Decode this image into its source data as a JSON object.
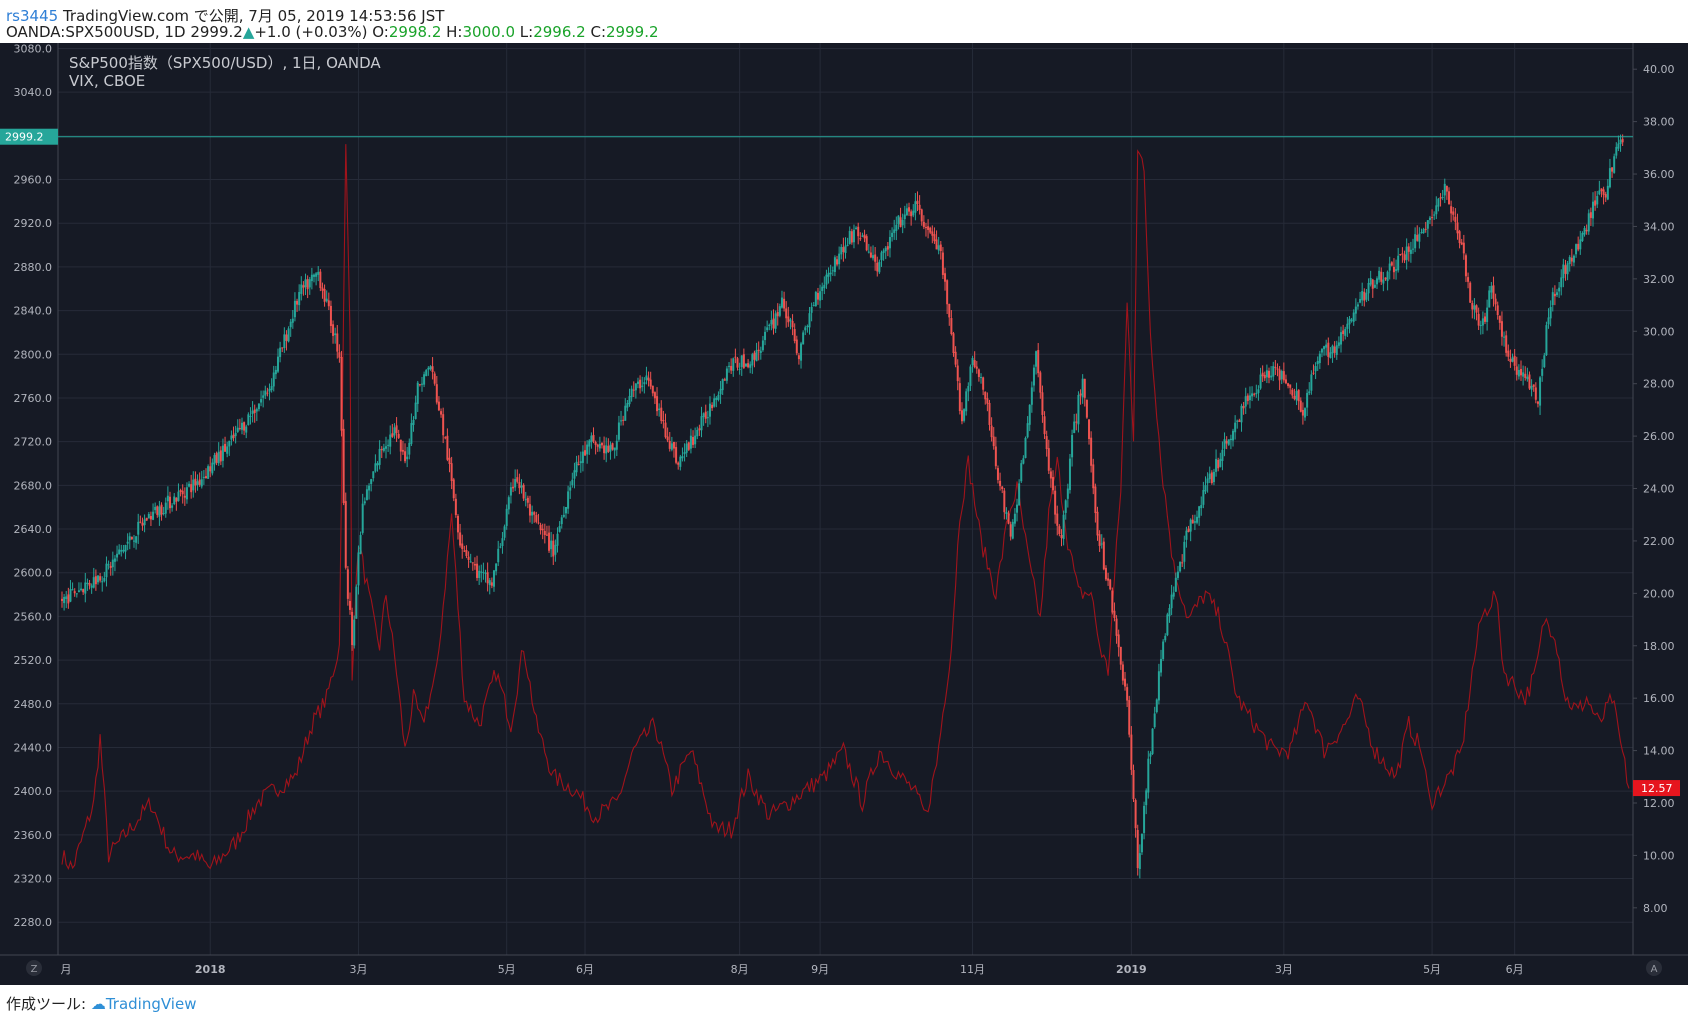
{
  "header": {
    "author": "rs3445",
    "published": "TradingView.com で公開, 7月 05, 2019 14:53:56 JST",
    "symbol": "OANDA:SPX500USD, 1D",
    "last": "2999.2",
    "change_arrow": "▲",
    "change": "+1.0 (+0.03%)",
    "o_label": "O:",
    "o_val": "2998.2",
    "h_label": "H:",
    "h_val": "3000.0",
    "l_label": "L:",
    "l_val": "2996.2",
    "c_label": "C:",
    "c_val": "2999.2"
  },
  "footer": {
    "label": "作成ツール:",
    "brand": "TradingView",
    "brand_icon": "cloud-logo-icon"
  },
  "legend": {
    "line1": "S&P500指数（SPX500/USD）, 1日, OANDA",
    "line2": "VIX, CBOE"
  },
  "colors": {
    "background": "#161a25",
    "grid": "#262b38",
    "up": "#26a69a",
    "down": "#ef5350",
    "vix": "#a0131b",
    "price_tag": "#26a69a",
    "vix_tag": "#e6151e",
    "axis_text": "#b2b5be"
  },
  "buttons": {
    "left": "Z",
    "right": "A"
  },
  "price_tag": "2999.2",
  "vix_tag": "12.57",
  "chart_data": {
    "type": "candlestick",
    "series": [
      {
        "name": "S&P500指数（SPX500/USD）, 1日, OANDA",
        "axis": "left",
        "anchors": [
          [
            0,
            2575
          ],
          [
            20,
            2600
          ],
          [
            40,
            2650
          ],
          [
            65,
            2685
          ],
          [
            80,
            2720
          ],
          [
            98,
            2770
          ],
          [
            112,
            2855
          ],
          [
            121,
            2875
          ],
          [
            131,
            2800
          ],
          [
            134,
            2600
          ],
          [
            137,
            2540
          ],
          [
            142,
            2660
          ],
          [
            151,
            2715
          ],
          [
            157,
            2730
          ],
          [
            162,
            2700
          ],
          [
            168,
            2770
          ],
          [
            174,
            2790
          ],
          [
            181,
            2720
          ],
          [
            188,
            2630
          ],
          [
            196,
            2600
          ],
          [
            203,
            2590
          ],
          [
            214,
            2690
          ],
          [
            222,
            2650
          ],
          [
            232,
            2620
          ],
          [
            241,
            2690
          ],
          [
            250,
            2720
          ],
          [
            260,
            2710
          ],
          [
            267,
            2760
          ],
          [
            276,
            2780
          ],
          [
            283,
            2740
          ],
          [
            291,
            2700
          ],
          [
            303,
            2740
          ],
          [
            315,
            2790
          ],
          [
            326,
            2795
          ],
          [
            336,
            2830
          ],
          [
            340,
            2850
          ],
          [
            348,
            2800
          ],
          [
            355,
            2850
          ],
          [
            365,
            2885
          ],
          [
            375,
            2915
          ],
          [
            385,
            2880
          ],
          [
            395,
            2920
          ],
          [
            403,
            2935
          ],
          [
            410,
            2910
          ],
          [
            415,
            2890
          ],
          [
            421,
            2800
          ],
          [
            425,
            2740
          ],
          [
            430,
            2800
          ],
          [
            436,
            2760
          ],
          [
            443,
            2680
          ],
          [
            448,
            2630
          ],
          [
            455,
            2720
          ],
          [
            460,
            2800
          ],
          [
            467,
            2680
          ],
          [
            472,
            2630
          ],
          [
            477,
            2720
          ],
          [
            482,
            2780
          ],
          [
            489,
            2640
          ],
          [
            497,
            2560
          ],
          [
            503,
            2480
          ],
          [
            508,
            2330
          ],
          [
            515,
            2460
          ],
          [
            522,
            2560
          ],
          [
            532,
            2640
          ],
          [
            541,
            2680
          ],
          [
            550,
            2720
          ],
          [
            560,
            2760
          ],
          [
            569,
            2785
          ],
          [
            578,
            2780
          ],
          [
            586,
            2750
          ],
          [
            594,
            2800
          ],
          [
            603,
            2810
          ],
          [
            612,
            2845
          ],
          [
            620,
            2870
          ],
          [
            629,
            2880
          ],
          [
            638,
            2900
          ],
          [
            646,
            2925
          ],
          [
            653,
            2950
          ],
          [
            661,
            2900
          ],
          [
            665,
            2850
          ],
          [
            670,
            2820
          ],
          [
            675,
            2860
          ],
          [
            681,
            2810
          ],
          [
            686,
            2790
          ],
          [
            690,
            2780
          ],
          [
            697,
            2760
          ],
          [
            703,
            2850
          ],
          [
            710,
            2880
          ],
          [
            717,
            2900
          ],
          [
            724,
            2940
          ],
          [
            729,
            2950
          ],
          [
            733,
            2980
          ],
          [
            737,
            3000
          ]
        ]
      },
      {
        "name": "VIX, CBOE",
        "axis": "right",
        "anchors": [
          [
            0,
            10
          ],
          [
            5,
            9.5
          ],
          [
            15,
            12
          ],
          [
            18,
            14.5
          ],
          [
            22,
            10
          ],
          [
            32,
            11
          ],
          [
            42,
            12
          ],
          [
            52,
            10
          ],
          [
            63,
            10
          ],
          [
            70,
            9.5
          ],
          [
            82,
            10.5
          ],
          [
            92,
            12
          ],
          [
            100,
            12.5
          ],
          [
            110,
            13
          ],
          [
            118,
            15
          ],
          [
            125,
            16
          ],
          [
            131,
            18
          ],
          [
            134,
            37
          ],
          [
            136,
            30
          ],
          [
            137,
            17
          ],
          [
            140,
            22
          ],
          [
            147,
            19
          ],
          [
            150,
            18
          ],
          [
            153,
            20
          ],
          [
            158,
            17
          ],
          [
            162,
            14
          ],
          [
            166,
            16
          ],
          [
            170,
            15
          ],
          [
            177,
            17
          ],
          [
            184,
            23
          ],
          [
            190,
            16
          ],
          [
            197,
            15
          ],
          [
            205,
            17
          ],
          [
            212,
            15
          ],
          [
            218,
            18
          ],
          [
            224,
            15
          ],
          [
            232,
            13
          ],
          [
            242,
            12.5
          ],
          [
            252,
            11.5
          ],
          [
            262,
            12
          ],
          [
            270,
            14
          ],
          [
            280,
            15
          ],
          [
            288,
            12.5
          ],
          [
            297,
            14
          ],
          [
            308,
            11
          ],
          [
            316,
            11
          ],
          [
            324,
            13
          ],
          [
            334,
            11.5
          ],
          [
            343,
            12
          ],
          [
            351,
            12.5
          ],
          [
            360,
            13
          ],
          [
            369,
            14
          ],
          [
            378,
            12
          ],
          [
            386,
            14
          ],
          [
            396,
            13
          ],
          [
            402,
            12.5
          ],
          [
            408,
            11.5
          ],
          [
            413,
            13.5
          ],
          [
            420,
            18
          ],
          [
            424,
            23
          ],
          [
            428,
            25
          ],
          [
            434,
            22
          ],
          [
            441,
            20
          ],
          [
            447,
            23
          ],
          [
            451,
            24
          ],
          [
            457,
            21
          ],
          [
            462,
            19
          ],
          [
            466,
            23
          ],
          [
            470,
            25
          ],
          [
            475,
            22
          ],
          [
            480,
            20
          ],
          [
            486,
            20
          ],
          [
            490,
            18
          ],
          [
            494,
            17
          ],
          [
            500,
            24
          ],
          [
            503,
            31
          ],
          [
            506,
            26
          ],
          [
            508,
            37
          ],
          [
            511,
            36
          ],
          [
            514,
            30
          ],
          [
            519,
            25
          ],
          [
            525,
            21
          ],
          [
            532,
            19
          ],
          [
            540,
            20
          ],
          [
            547,
            19
          ],
          [
            555,
            16
          ],
          [
            563,
            15
          ],
          [
            572,
            14
          ],
          [
            580,
            14
          ],
          [
            588,
            16
          ],
          [
            596,
            14
          ],
          [
            606,
            15
          ],
          [
            612,
            16
          ],
          [
            620,
            14
          ],
          [
            630,
            13
          ],
          [
            636,
            15
          ],
          [
            642,
            14
          ],
          [
            646,
            12
          ],
          [
            655,
            13
          ],
          [
            661,
            14
          ],
          [
            666,
            17
          ],
          [
            670,
            19
          ],
          [
            677,
            20
          ],
          [
            681,
            17
          ],
          [
            686,
            16.5
          ],
          [
            691,
            16
          ],
          [
            696,
            17
          ],
          [
            700,
            19
          ],
          [
            705,
            18.5
          ],
          [
            710,
            16
          ],
          [
            716,
            15.5
          ],
          [
            720,
            16
          ],
          [
            726,
            15
          ],
          [
            732,
            16
          ],
          [
            740,
            12.57
          ]
        ]
      }
    ],
    "left_axis": {
      "ylim": [
        2250,
        3085
      ],
      "ticks": [
        "3080.0",
        "3040.0",
        "3000.0",
        "2960.0",
        "2920.0",
        "2880.0",
        "2840.0",
        "2800.0",
        "2760.0",
        "2720.0",
        "2680.0",
        "2640.0",
        "2600.0",
        "2560.0",
        "2520.0",
        "2480.0",
        "2440.0",
        "2400.0",
        "2360.0",
        "2320.0",
        "2280.0"
      ]
    },
    "right_axis": {
      "ylim": [
        6.2,
        41.0
      ],
      "ticks": [
        "40.00",
        "38.00",
        "36.00",
        "34.00",
        "32.00",
        "30.00",
        "28.00",
        "26.00",
        "24.00",
        "22.00",
        "20.00",
        "18.00",
        "16.00",
        "14.00",
        "12.00",
        "10.00",
        "8.00"
      ]
    },
    "x_axis": {
      "ticks": [
        {
          "label": "月",
          "day": 0
        },
        {
          "label": "2018",
          "day": 70,
          "bold": true
        },
        {
          "label": "3月",
          "day": 140
        },
        {
          "label": "5月",
          "day": 210
        },
        {
          "label": "6月",
          "day": 247
        },
        {
          "label": "8月",
          "day": 320
        },
        {
          "label": "9月",
          "day": 358
        },
        {
          "label": "11月",
          "day": 430
        },
        {
          "label": "2019",
          "day": 505,
          "bold": true
        },
        {
          "label": "3月",
          "day": 577
        },
        {
          "label": "5月",
          "day": 647
        },
        {
          "label": "6月",
          "day": 686
        }
      ]
    },
    "grid": true,
    "legend_position": "top-left"
  }
}
